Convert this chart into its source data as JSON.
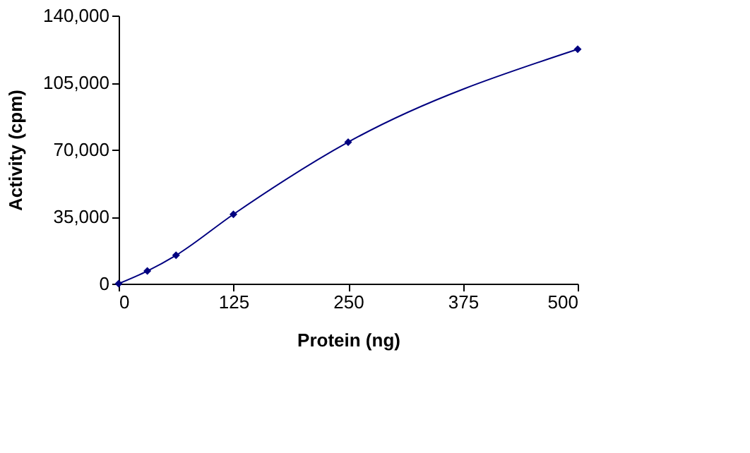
{
  "chart_data": {
    "type": "line",
    "xlabel": "Protein (ng)",
    "ylabel": "Activity (cpm)",
    "x": [
      0,
      31.25,
      62.5,
      125,
      250,
      500
    ],
    "series": [
      {
        "color": "#000080",
        "values": [
          0,
          6600,
          14800,
          36200,
          73900,
          122400
        ]
      }
    ],
    "xlim": [
      0,
      500
    ],
    "xticks": [
      0,
      125,
      250,
      375,
      500
    ],
    "ylim": [
      0,
      140000
    ],
    "yticks": [
      0,
      {
        "value": 35000,
        "label": "35,000"
      },
      {
        "value": 70000,
        "label": "70,000"
      },
      {
        "value": 105000,
        "label": "105,000"
      },
      {
        "value": 140000,
        "label": "140,000"
      }
    ],
    "grid": false,
    "legend": false,
    "marker": "diamond",
    "line_style": "solid"
  }
}
